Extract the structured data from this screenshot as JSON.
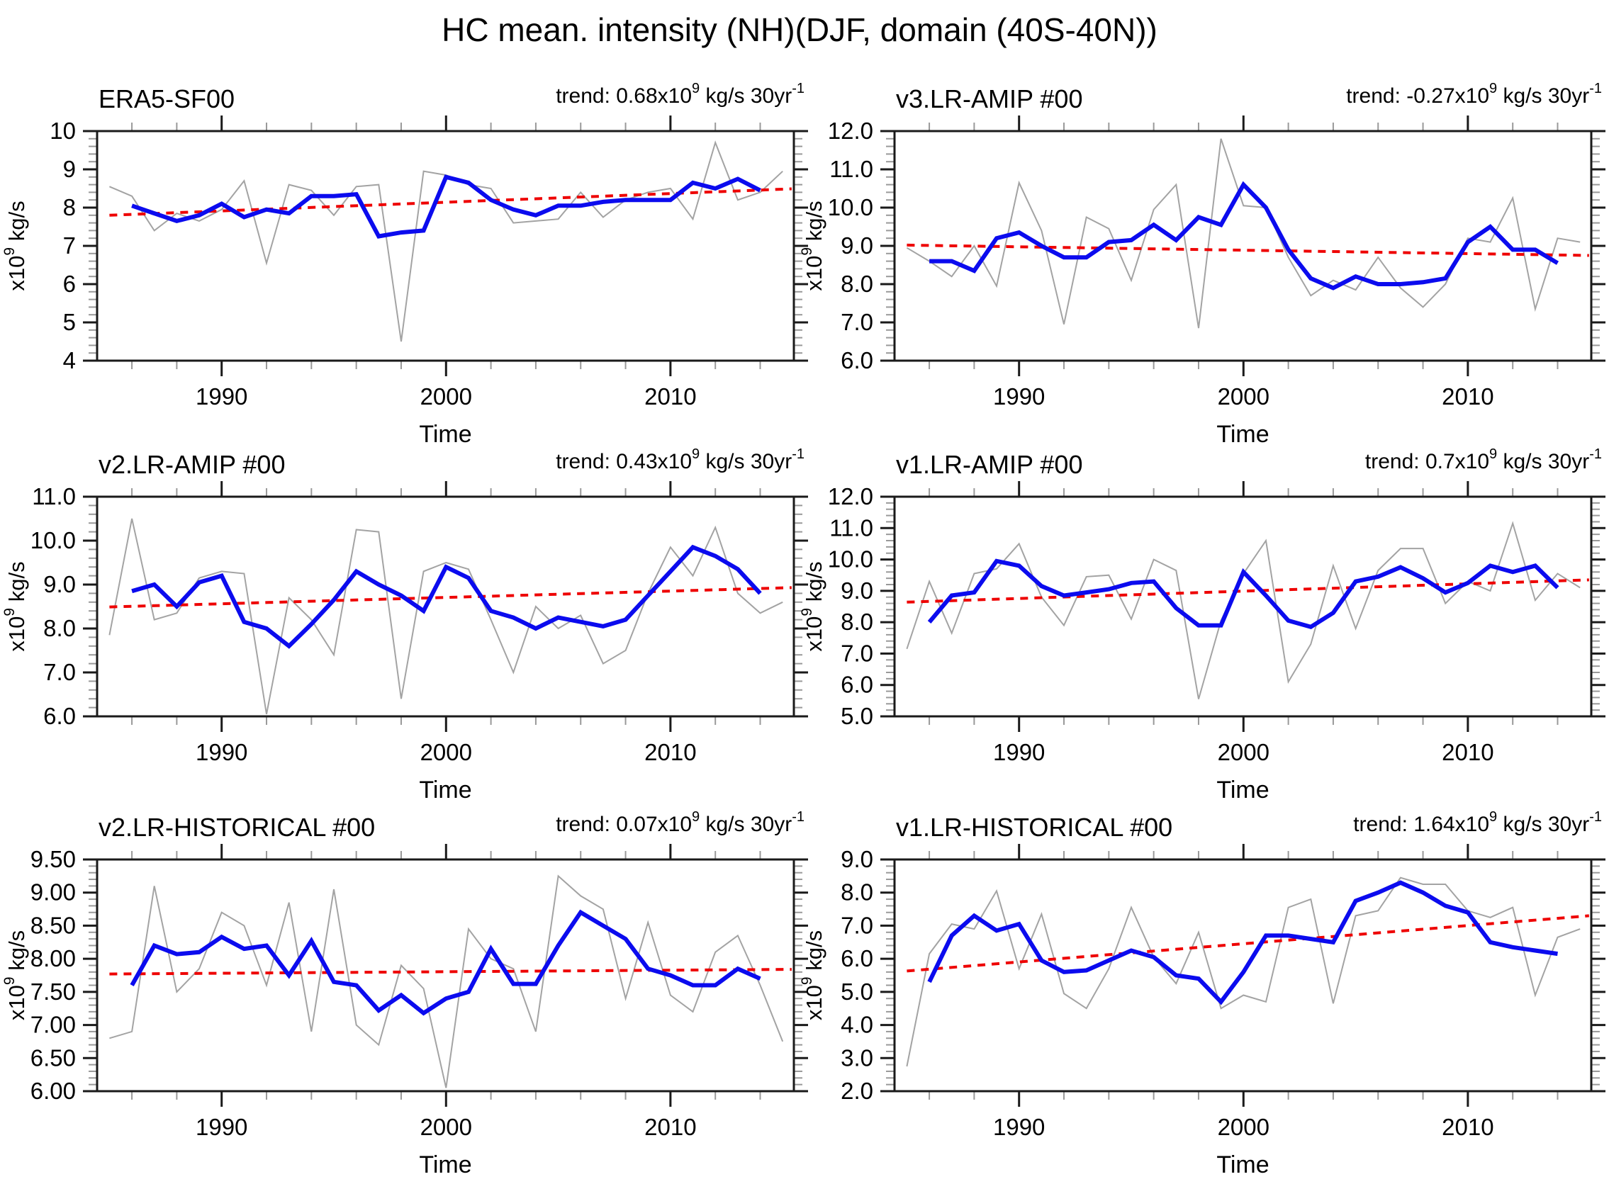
{
  "figure": {
    "title": "HC mean. intensity (NH)(DJF, domain (40S-40N))"
  },
  "colors": {
    "raw_line": "#a3a3a3",
    "smooth_line": "#0b0bee",
    "trend_line": "#ee0000",
    "frame": "#1a1a1a",
    "minor_tick": "#999999",
    "text": "#000000"
  },
  "chart_data": [
    {
      "type": "line",
      "title": "ERA5-SF00",
      "trend_label": "trend: 0.68x10^9 kg/s 30yr^-1",
      "xlabel": "Time",
      "ylabel": "x10^9 kg/s",
      "xlim": [
        1984.45,
        2015.5
      ],
      "ylim": [
        4,
        10
      ],
      "yticks": [
        4,
        5,
        6,
        7,
        8,
        9,
        10
      ],
      "ytick_labels": [
        "4",
        "5",
        "6",
        "7",
        "8",
        "9",
        "10"
      ],
      "ytick_minor_step": 0.2,
      "xticks_major": [
        1990,
        2000,
        2010
      ],
      "xtick_labels": [
        "1990",
        "2000",
        "2010"
      ],
      "xtick_minor_step": 2,
      "grid": false,
      "series": [
        {
          "name": "annual",
          "role": "raw",
          "x_start": 1985,
          "values": [
            8.55,
            8.3,
            7.4,
            7.85,
            7.65,
            7.95,
            8.7,
            6.55,
            8.6,
            8.45,
            7.8,
            8.55,
            8.6,
            4.5,
            8.95,
            8.85,
            8.6,
            8.5,
            7.6,
            7.65,
            7.7,
            8.4,
            7.75,
            8.2,
            8.4,
            8.5,
            7.7,
            9.7,
            8.2,
            8.4,
            8.95
          ]
        },
        {
          "name": "smoothed",
          "role": "smooth",
          "x_start": 1986,
          "values": [
            8.05,
            7.85,
            7.65,
            7.8,
            8.1,
            7.75,
            7.95,
            7.85,
            8.3,
            8.3,
            8.35,
            7.25,
            7.35,
            7.4,
            8.8,
            8.65,
            8.2,
            7.95,
            7.8,
            8.05,
            8.05,
            8.15,
            8.2,
            8.2,
            8.2,
            8.65,
            8.5,
            8.75,
            8.45
          ]
        },
        {
          "name": "linear trend",
          "role": "trend",
          "x": [
            1985,
            2015.4
          ],
          "values": [
            7.8,
            8.49
          ]
        }
      ]
    },
    {
      "type": "line",
      "title": "v3.LR-AMIP  #00",
      "trend_label": "trend: -0.27x10^9 kg/s 30yr^-1",
      "xlabel": "Time",
      "ylabel": "x10^9 kg/s",
      "xlim": [
        1984.45,
        2015.5
      ],
      "ylim": [
        6,
        12
      ],
      "yticks": [
        6,
        7,
        8,
        9,
        10,
        11,
        12
      ],
      "ytick_labels": [
        "6.0",
        "7.0",
        "8.0",
        "9.0",
        "10.0",
        "11.0",
        "12.0"
      ],
      "ytick_minor_step": 0.2,
      "xticks_major": [
        1990,
        2000,
        2010
      ],
      "xtick_labels": [
        "1990",
        "2000",
        "2010"
      ],
      "xtick_minor_step": 2,
      "grid": false,
      "series": [
        {
          "name": "annual",
          "role": "raw",
          "x_start": 1985,
          "values": [
            8.95,
            8.6,
            8.2,
            9.0,
            7.95,
            10.65,
            9.4,
            6.95,
            9.75,
            9.45,
            8.1,
            9.95,
            10.6,
            6.85,
            11.8,
            10.05,
            10.0,
            8.7,
            7.7,
            8.1,
            7.85,
            8.7,
            7.9,
            7.4,
            8.0,
            9.2,
            9.1,
            10.25,
            7.35,
            9.2,
            9.1
          ]
        },
        {
          "name": "smoothed",
          "role": "smooth",
          "x_start": 1986,
          "values": [
            8.6,
            8.6,
            8.35,
            9.2,
            9.35,
            9.0,
            8.7,
            8.7,
            9.1,
            9.15,
            9.55,
            9.15,
            9.75,
            9.55,
            10.6,
            10.0,
            8.9,
            8.15,
            7.9,
            8.2,
            8.0,
            8.0,
            8.05,
            8.15,
            9.1,
            9.5,
            8.9,
            8.9,
            8.55
          ]
        },
        {
          "name": "linear trend",
          "role": "trend",
          "x": [
            1985,
            2015.4
          ],
          "values": [
            9.02,
            8.75
          ]
        }
      ]
    },
    {
      "type": "line",
      "title": "v2.LR-AMIP  #00",
      "trend_label": "trend: 0.43x10^9 kg/s 30yr^-1",
      "xlabel": "Time",
      "ylabel": "x10^9 kg/s",
      "xlim": [
        1984.45,
        2015.5
      ],
      "ylim": [
        6,
        11
      ],
      "yticks": [
        6,
        7,
        8,
        9,
        10,
        11
      ],
      "ytick_labels": [
        "6.0",
        "7.0",
        "8.0",
        "9.0",
        "10.0",
        "11.0"
      ],
      "ytick_minor_step": 0.2,
      "xticks_major": [
        1990,
        2000,
        2010
      ],
      "xtick_labels": [
        "1990",
        "2000",
        "2010"
      ],
      "xtick_minor_step": 2,
      "grid": false,
      "series": [
        {
          "name": "annual",
          "role": "raw",
          "x_start": 1985,
          "values": [
            7.85,
            10.5,
            8.2,
            8.35,
            9.15,
            9.3,
            9.25,
            6.05,
            8.7,
            8.2,
            7.4,
            10.25,
            10.2,
            6.4,
            9.3,
            9.5,
            9.35,
            8.2,
            7.0,
            8.5,
            8.0,
            8.3,
            7.2,
            7.5,
            8.8,
            9.85,
            9.2,
            10.3,
            8.8,
            8.35,
            8.6
          ]
        },
        {
          "name": "smoothed",
          "role": "smooth",
          "x_start": 1986,
          "values": [
            8.85,
            9.0,
            8.5,
            9.05,
            9.2,
            8.15,
            8.0,
            7.6,
            8.1,
            8.65,
            9.3,
            9.0,
            8.75,
            8.4,
            9.4,
            9.15,
            8.4,
            8.25,
            8.0,
            8.25,
            8.15,
            8.05,
            8.2,
            8.75,
            9.3,
            9.85,
            9.65,
            9.35,
            8.8
          ]
        },
        {
          "name": "linear trend",
          "role": "trend",
          "x": [
            1985,
            2015.4
          ],
          "values": [
            8.49,
            8.93
          ]
        }
      ]
    },
    {
      "type": "line",
      "title": "v1.LR-AMIP  #00",
      "trend_label": "trend: 0.7x10^9 kg/s 30yr^-1",
      "xlabel": "Time",
      "ylabel": "x10^9 kg/s",
      "xlim": [
        1984.45,
        2015.5
      ],
      "ylim": [
        5,
        12
      ],
      "yticks": [
        5,
        6,
        7,
        8,
        9,
        10,
        11,
        12
      ],
      "ytick_labels": [
        "5.0",
        "6.0",
        "7.0",
        "8.0",
        "9.0",
        "10.0",
        "11.0",
        "12.0"
      ],
      "ytick_minor_step": 0.2,
      "xticks_major": [
        1990,
        2000,
        2010
      ],
      "xtick_labels": [
        "1990",
        "2000",
        "2010"
      ],
      "xtick_minor_step": 2,
      "grid": false,
      "series": [
        {
          "name": "annual",
          "role": "raw",
          "x_start": 1985,
          "values": [
            7.15,
            9.3,
            7.65,
            9.55,
            9.7,
            10.5,
            8.8,
            7.9,
            9.45,
            9.5,
            8.1,
            10.0,
            9.65,
            5.55,
            8.05,
            9.55,
            10.6,
            6.1,
            7.3,
            9.8,
            7.8,
            9.65,
            10.35,
            10.35,
            8.6,
            9.3,
            9.0,
            11.15,
            8.7,
            9.55,
            9.1
          ]
        },
        {
          "name": "smoothed",
          "role": "smooth",
          "x_start": 1986,
          "values": [
            8.0,
            8.85,
            8.95,
            9.95,
            9.8,
            9.15,
            8.85,
            8.95,
            9.05,
            9.25,
            9.3,
            8.45,
            7.9,
            7.9,
            9.6,
            8.85,
            8.05,
            7.85,
            8.3,
            9.3,
            9.45,
            9.75,
            9.4,
            8.95,
            9.25,
            9.8,
            9.6,
            9.8,
            9.1
          ]
        },
        {
          "name": "linear trend",
          "role": "trend",
          "x": [
            1985,
            2015.4
          ],
          "values": [
            8.64,
            9.35
          ]
        }
      ]
    },
    {
      "type": "line",
      "title": "v2.LR-HISTORICAL  #00",
      "trend_label": "trend: 0.07x10^9 kg/s 30yr^-1",
      "xlabel": "Time",
      "ylabel": "x10^9 kg/s",
      "xlim": [
        1984.45,
        2015.5
      ],
      "ylim": [
        6,
        9.5
      ],
      "yticks": [
        6,
        6.5,
        7,
        7.5,
        8,
        8.5,
        9,
        9.5
      ],
      "ytick_labels": [
        "6.00",
        "6.50",
        "7.00",
        "7.50",
        "8.00",
        "8.50",
        "9.00",
        "9.50"
      ],
      "ytick_minor_step": 0.1,
      "xticks_major": [
        1990,
        2000,
        2010
      ],
      "xtick_labels": [
        "1990",
        "2000",
        "2010"
      ],
      "xtick_minor_step": 2,
      "grid": false,
      "series": [
        {
          "name": "annual",
          "role": "raw",
          "x_start": 1985,
          "values": [
            6.8,
            6.9,
            9.1,
            7.5,
            7.85,
            8.7,
            8.5,
            7.6,
            8.85,
            6.9,
            9.05,
            7.0,
            6.7,
            7.9,
            7.55,
            6.05,
            8.45,
            8.0,
            7.85,
            6.9,
            9.25,
            8.95,
            8.75,
            7.4,
            8.55,
            7.45,
            7.2,
            8.1,
            8.35,
            7.6,
            6.75
          ]
        },
        {
          "name": "smoothed",
          "role": "smooth",
          "x_start": 1986,
          "values": [
            7.6,
            8.2,
            8.07,
            8.1,
            8.33,
            8.15,
            8.2,
            7.75,
            8.27,
            7.65,
            7.6,
            7.22,
            7.45,
            7.18,
            7.4,
            7.5,
            8.15,
            7.62,
            7.62,
            8.2,
            8.7,
            8.5,
            8.3,
            7.85,
            7.75,
            7.6,
            7.6,
            7.85,
            7.7
          ]
        },
        {
          "name": "linear trend",
          "role": "trend",
          "x": [
            1985,
            2015.4
          ],
          "values": [
            7.77,
            7.84
          ]
        }
      ]
    },
    {
      "type": "line",
      "title": "v1.LR-HISTORICAL  #00",
      "trend_label": "trend: 1.64x10^9 kg/s 30yr^-1",
      "xlabel": "Time",
      "ylabel": "x10^9 kg/s",
      "xlim": [
        1984.45,
        2015.5
      ],
      "ylim": [
        2,
        9
      ],
      "yticks": [
        2,
        3,
        4,
        5,
        6,
        7,
        8,
        9
      ],
      "ytick_labels": [
        "2.0",
        "3.0",
        "4.0",
        "5.0",
        "6.0",
        "7.0",
        "8.0",
        "9.0"
      ],
      "ytick_minor_step": 0.2,
      "xticks_major": [
        1990,
        2000,
        2010
      ],
      "xtick_labels": [
        "1990",
        "2000",
        "2010"
      ],
      "xtick_minor_step": 2,
      "grid": false,
      "series": [
        {
          "name": "annual",
          "role": "raw",
          "x_start": 1985,
          "values": [
            2.75,
            6.15,
            7.05,
            6.9,
            8.05,
            5.7,
            7.35,
            4.95,
            4.5,
            5.7,
            7.55,
            6.05,
            5.25,
            6.8,
            4.5,
            4.9,
            4.7,
            7.55,
            7.8,
            4.65,
            7.3,
            7.45,
            8.45,
            8.25,
            8.25,
            7.45,
            7.25,
            7.55,
            4.9,
            6.65,
            6.9
          ]
        },
        {
          "name": "smoothed",
          "role": "smooth",
          "x_start": 1986,
          "values": [
            5.3,
            6.7,
            7.3,
            6.85,
            7.05,
            5.95,
            5.6,
            5.65,
            5.95,
            6.25,
            6.05,
            5.5,
            5.4,
            4.7,
            5.6,
            6.7,
            6.7,
            6.6,
            6.5,
            7.75,
            8.0,
            8.3,
            8.0,
            7.6,
            7.4,
            6.5,
            6.35,
            6.25,
            6.15
          ]
        },
        {
          "name": "linear trend",
          "role": "trend",
          "x": [
            1985,
            2015.4
          ],
          "values": [
            5.63,
            7.3
          ]
        }
      ]
    }
  ]
}
